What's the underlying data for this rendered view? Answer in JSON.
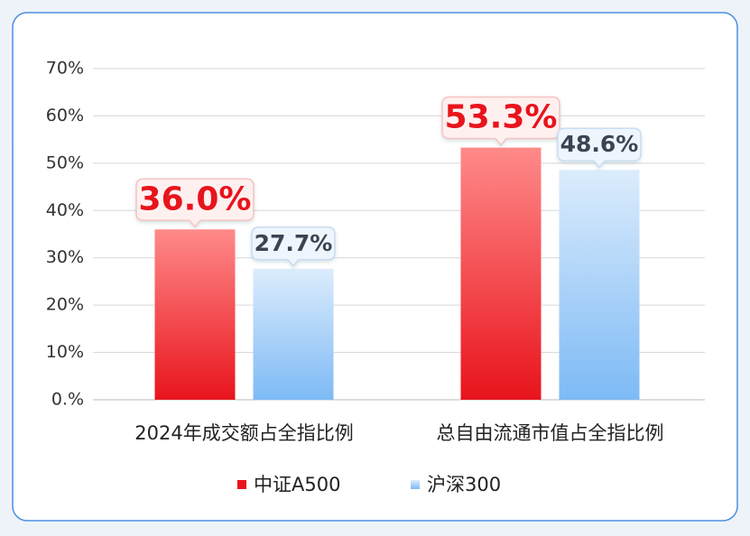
{
  "chart_data": {
    "type": "bar",
    "categories": [
      "2024年成交额占全指比例",
      "总自由流通市值占全指比例"
    ],
    "series": [
      {
        "name": "中证A500",
        "color": "#e8141c",
        "values": [
          36.0,
          53.3
        ],
        "value_labels": [
          "36.0%",
          "53.3%"
        ]
      },
      {
        "name": "沪深300",
        "color": "#7dbaf5",
        "values": [
          27.7,
          48.6
        ],
        "value_labels": [
          "27.7%",
          "48.6%"
        ]
      }
    ],
    "ylim": [
      0,
      70
    ],
    "yticks": [
      {
        "value": 0,
        "label": "0.%"
      },
      {
        "value": 10,
        "label": "10%"
      },
      {
        "value": 20,
        "label": "20%"
      },
      {
        "value": 30,
        "label": "30%"
      },
      {
        "value": 40,
        "label": "40%"
      },
      {
        "value": 50,
        "label": "50%"
      },
      {
        "value": 60,
        "label": "60%"
      },
      {
        "value": 70,
        "label": "70%"
      }
    ],
    "grid": true,
    "legend": "bottom"
  }
}
